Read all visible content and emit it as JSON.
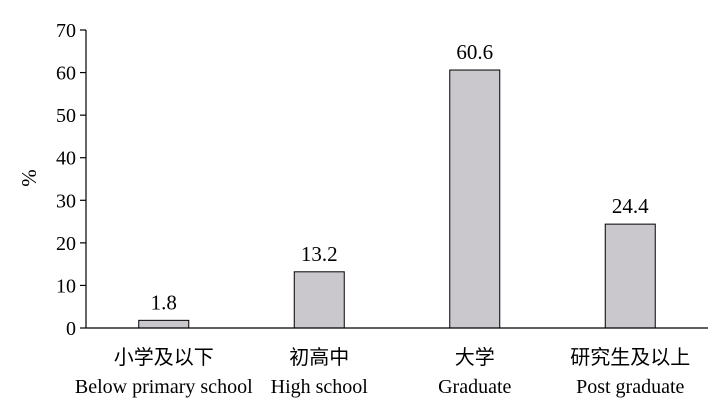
{
  "chart_data": {
    "type": "bar",
    "title": "",
    "ylabel": "%",
    "xlabel": "",
    "ylim": [
      0,
      70
    ],
    "yticks": [
      0,
      10,
      20,
      30,
      40,
      50,
      60,
      70
    ],
    "categories": [
      {
        "zh": "小学及以下",
        "en": "Below primary school"
      },
      {
        "zh": "初高中",
        "en": "High school"
      },
      {
        "zh": "大学",
        "en": "Graduate"
      },
      {
        "zh": "研究生及以上",
        "en": "Post graduate"
      }
    ],
    "values": [
      1.8,
      13.2,
      60.6,
      24.4
    ],
    "data_labels": [
      "1.8",
      "13.2",
      "60.6",
      "24.4"
    ],
    "bar_color": "#cbc8cd",
    "grid": false
  }
}
